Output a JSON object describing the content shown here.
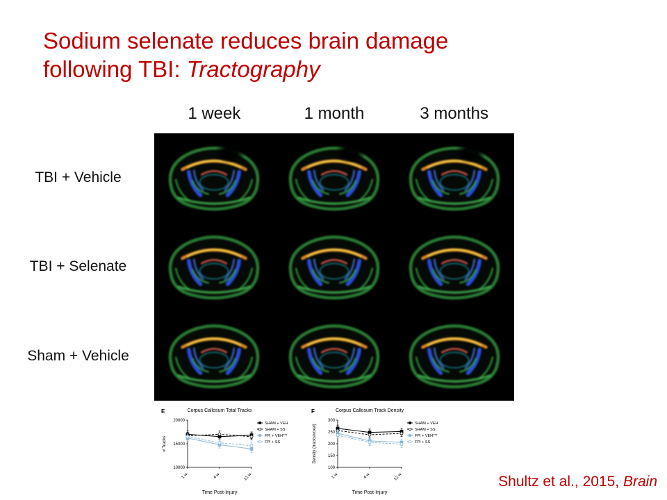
{
  "slide": {
    "title": {
      "line1": "Sodium selenate reduces brain damage",
      "line2_normal": "following TBI: ",
      "line2_italic": "Tractography"
    },
    "column_headers": [
      "1 week",
      "1 month",
      "3 months"
    ],
    "row_labels": [
      "TBI + Vehicle",
      "TBI + Selenate",
      "Sham + Vehicle"
    ],
    "citation": {
      "text": "Shultz et al., 2015, ",
      "source_italic": "Brain"
    },
    "colors": {
      "accent_red": "#C00000",
      "image_panel_bg": "#000000"
    }
  },
  "chart_data": [
    {
      "type": "line",
      "panel": "E",
      "title": "Corpus Callosum Total Tracks",
      "xlabel": "Time Post-Injury",
      "ylabel": "# Tracks",
      "x": [
        "1 w",
        "4 w",
        "12 w"
      ],
      "ylim": [
        10000,
        20000
      ],
      "yticks": [
        10000,
        15000,
        20000
      ],
      "legend_position": "right",
      "grid": false,
      "series": [
        {
          "name": "SHAM + VEH",
          "values": [
            17000,
            16500,
            16800
          ],
          "error": 700,
          "color": "#000000",
          "marker": "square",
          "open": false,
          "dash": false
        },
        {
          "name": "SHAM + SS",
          "values": [
            16700,
            17000,
            16500
          ],
          "error": 700,
          "color": "#000000",
          "marker": "circle",
          "open": true,
          "dash": true
        },
        {
          "name": "FPI + VEH***",
          "values": [
            16200,
            14800,
            13900
          ],
          "error": 700,
          "color": "#8ab6d6",
          "marker": "square",
          "open": false,
          "dash": false
        },
        {
          "name": "FPI + SS",
          "values": [
            16500,
            15200,
            14600
          ],
          "error": 700,
          "color": "#8ab6d6",
          "marker": "circle",
          "open": true,
          "dash": true
        }
      ]
    },
    {
      "type": "line",
      "panel": "F",
      "title": "Corpus Callosum Track Density",
      "xlabel": "Time Post-Injury",
      "ylabel": "Density (tracks/voxel)",
      "x": [
        "1 w",
        "4 w",
        "12 w"
      ],
      "ylim": [
        100,
        300
      ],
      "yticks": [
        100,
        150,
        200,
        250,
        300
      ],
      "legend_position": "right",
      "grid": false,
      "series": [
        {
          "name": "SHAM + VEH",
          "values": [
            265,
            248,
            252
          ],
          "error": 14,
          "color": "#000000",
          "marker": "square",
          "open": false,
          "dash": false
        },
        {
          "name": "SHAM + SS",
          "values": [
            256,
            238,
            244
          ],
          "error": 14,
          "color": "#000000",
          "marker": "circle",
          "open": true,
          "dash": true
        },
        {
          "name": "FPI + VEH***",
          "values": [
            244,
            212,
            206
          ],
          "error": 14,
          "color": "#8ab6d6",
          "marker": "square",
          "open": false,
          "dash": false
        },
        {
          "name": "FPI + SS",
          "values": [
            236,
            206,
            198
          ],
          "error": 14,
          "color": "#8ab6d6",
          "marker": "circle",
          "open": true,
          "dash": true
        }
      ]
    }
  ]
}
